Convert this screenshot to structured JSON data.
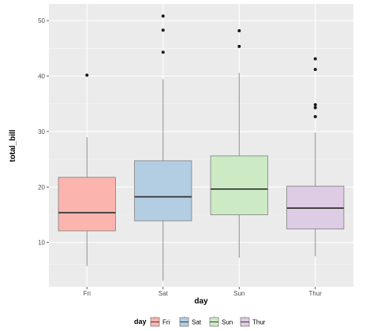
{
  "chart_data": {
    "type": "box",
    "xlabel": "day",
    "ylabel": "total_bill",
    "categories": [
      "Fri",
      "Sat",
      "Sun",
      "Thur"
    ],
    "yticks": [
      10,
      20,
      30,
      40,
      50
    ],
    "ylim": [
      2,
      53
    ],
    "grid": true,
    "boxes": [
      {
        "category": "Fri",
        "color": "#fbb4ae",
        "whisker_low": 5.75,
        "q1": 12.09,
        "median": 15.38,
        "q3": 21.75,
        "whisker_high": 28.97,
        "outliers": [
          40.17
        ]
      },
      {
        "category": "Sat",
        "color": "#b3cde3",
        "whisker_low": 3.07,
        "q1": 13.91,
        "median": 18.24,
        "q3": 24.74,
        "whisker_high": 39.42,
        "outliers": [
          44.3,
          48.27,
          50.81
        ]
      },
      {
        "category": "Sun",
        "color": "#ccebc5",
        "whisker_low": 7.25,
        "q1": 14.99,
        "median": 19.63,
        "q3": 25.6,
        "whisker_high": 40.55,
        "outliers": [
          45.35,
          48.17
        ]
      },
      {
        "category": "Thur",
        "color": "#decbe4",
        "whisker_low": 7.51,
        "q1": 12.44,
        "median": 16.2,
        "q3": 20.16,
        "whisker_high": 29.8,
        "outliers": [
          32.68,
          34.3,
          34.83,
          41.19,
          43.11
        ]
      }
    ],
    "legend": {
      "title": "day",
      "position": "bottom",
      "entries": [
        {
          "label": "Fri",
          "color": "#fbb4ae"
        },
        {
          "label": "Sat",
          "color": "#b3cde3"
        },
        {
          "label": "Sun",
          "color": "#ccebc5"
        },
        {
          "label": "Thur",
          "color": "#decbe4"
        }
      ]
    }
  }
}
